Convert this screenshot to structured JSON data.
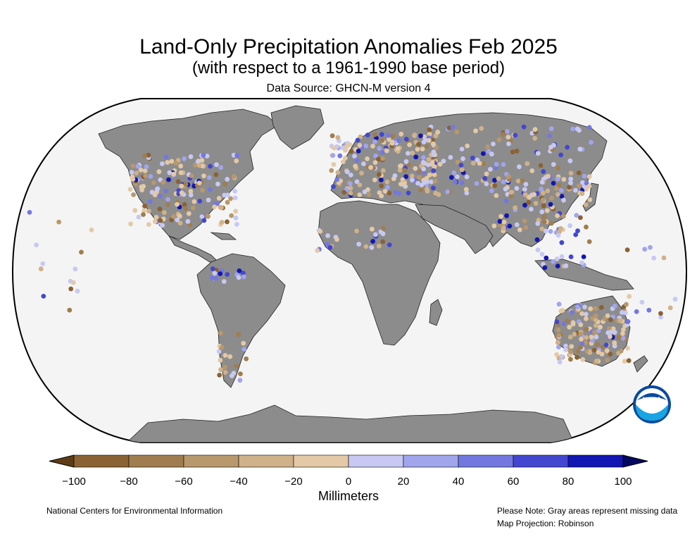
{
  "title": "Land-Only Precipitation Anomalies Feb 2025",
  "subtitle": "(with respect to a 1961-1990 base period)",
  "source": "Data Source: GHCN-M version 4",
  "colorbar": {
    "ticks": [
      "−100",
      "−80",
      "−60",
      "−40",
      "−20",
      "0",
      "20",
      "40",
      "60",
      "80",
      "100"
    ],
    "units": "Millimeters",
    "colors": [
      "#8a6234",
      "#a07d4e",
      "#b8986d",
      "#cfb18a",
      "#e3c9a6",
      "#c7c9f2",
      "#a1a5ec",
      "#7378e0",
      "#4347cf",
      "#1216b3"
    ],
    "low_extend_color": "#5e3d16",
    "high_extend_color": "#05085f"
  },
  "map": {
    "ocean_color": "#f4f4f4",
    "land_missing_color": "#8c8c8c",
    "missing_note": "Gray areas represent missing data"
  },
  "footer": {
    "left": "National Centers for Environmental Information",
    "right_line1": "Please Note: Gray areas represent missing data",
    "right_line2": "Map Projection: Robinson"
  },
  "logo": {
    "text": "NOAA",
    "icon": "noaa-logo-icon"
  }
}
